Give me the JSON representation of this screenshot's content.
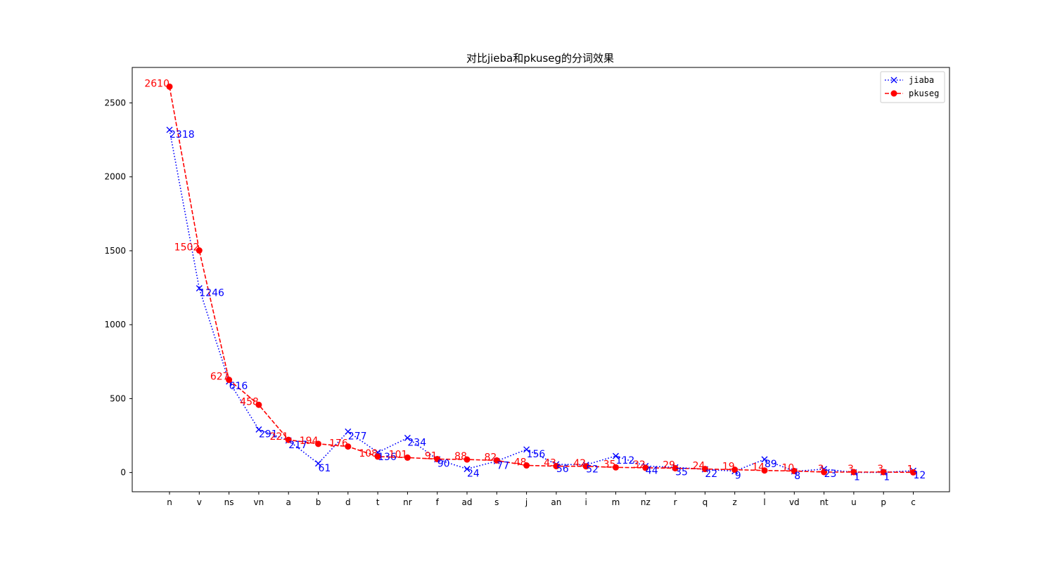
{
  "chart_data": {
    "type": "line",
    "title": "对比jieba和pkuseg的分词效果",
    "xlabel": "",
    "ylabel": "",
    "categories": [
      "n",
      "v",
      "ns",
      "vn",
      "a",
      "b",
      "d",
      "t",
      "nr",
      "f",
      "ad",
      "s",
      "j",
      "an",
      "i",
      "m",
      "nz",
      "r",
      "q",
      "z",
      "l",
      "vd",
      "nt",
      "u",
      "p",
      "c"
    ],
    "ylim": [
      -130,
      2740
    ],
    "yticks": [
      0,
      500,
      1000,
      1500,
      2000,
      2500
    ],
    "grid": false,
    "legend": "top-right",
    "series": [
      {
        "name": "jiaba",
        "color": "#0000ff",
        "marker": "x",
        "linestyle": "dotted",
        "values": [
          2318,
          1246,
          616,
          291,
          217,
          61,
          277,
          136,
          234,
          90,
          24,
          77,
          156,
          56,
          52,
          112,
          44,
          35,
          22,
          9,
          89,
          8,
          23,
          1,
          1,
          12
        ]
      },
      {
        "name": "pkuseg",
        "color": "#ff0000",
        "marker": "circle",
        "linestyle": "dashed",
        "values": [
          2610,
          1502,
          627,
          458,
          221,
          194,
          176,
          108,
          101,
          91,
          88,
          82,
          48,
          43,
          42,
          35,
          32,
          29,
          24,
          19,
          14,
          10,
          3,
          3,
          3,
          1
        ]
      }
    ]
  }
}
